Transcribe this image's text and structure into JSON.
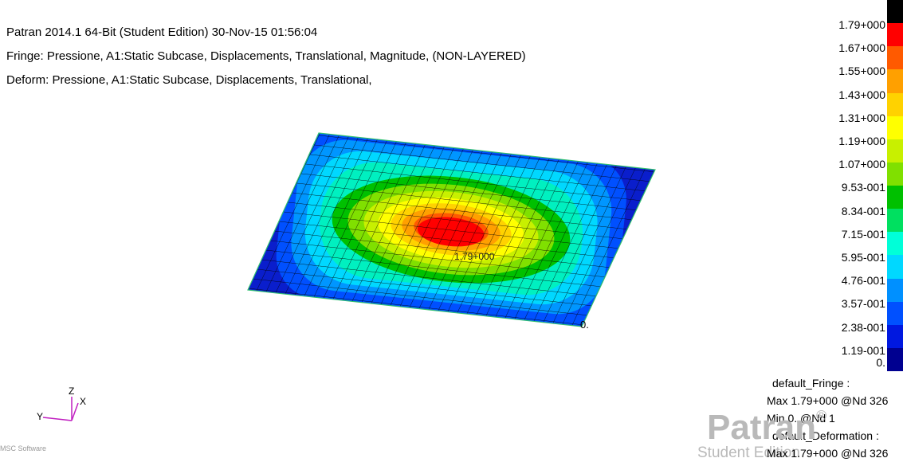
{
  "header": {
    "line1": "Patran 2014.1 64-Bit  (Student Edition) 30-Nov-15 01:56:04",
    "line2": "Fringe: Pressione, A1:Static Subcase, Displacements, Translational, Magnitude, (NON-LAYERED)",
    "line3": "Deform: Pressione, A1:Static Subcase, Displacements, Translational,"
  },
  "legend": {
    "labels": [
      "1.79+000",
      "1.67+000",
      "1.55+000",
      "1.43+000",
      "1.31+000",
      "1.19+000",
      "1.07+000",
      "9.53-001",
      "8.34-001",
      "7.15-001",
      "5.95-001",
      "4.76-001",
      "3.57-001",
      "2.38-001",
      "1.19-001",
      "0."
    ],
    "colors": [
      "#000000",
      "#ff0000",
      "#ff5a00",
      "#ffa000",
      "#ffd200",
      "#ffff00",
      "#c8f000",
      "#80e000",
      "#00c000",
      "#00e060",
      "#00ffd8",
      "#00d8ff",
      "#0090ff",
      "#0050ff",
      "#0018e0",
      "#000090"
    ]
  },
  "model_labels": {
    "max_label": "1.79+000",
    "min_label": "0."
  },
  "stats": {
    "fringe_title": "default_Fringe :",
    "fringe_max": "Max 1.79+000 @Nd 326",
    "fringe_min": "Min 0. @Nd 1",
    "deform_title": "default_Deformation :",
    "deform_max": "Max 1.79+000 @Nd 326"
  },
  "triad": {
    "x": "X",
    "y": "Y",
    "z": "Z"
  },
  "watermark": {
    "brand": "Patran",
    "reg": "®",
    "edition": "Student Edition"
  },
  "corner_logo": "MSC Software"
}
